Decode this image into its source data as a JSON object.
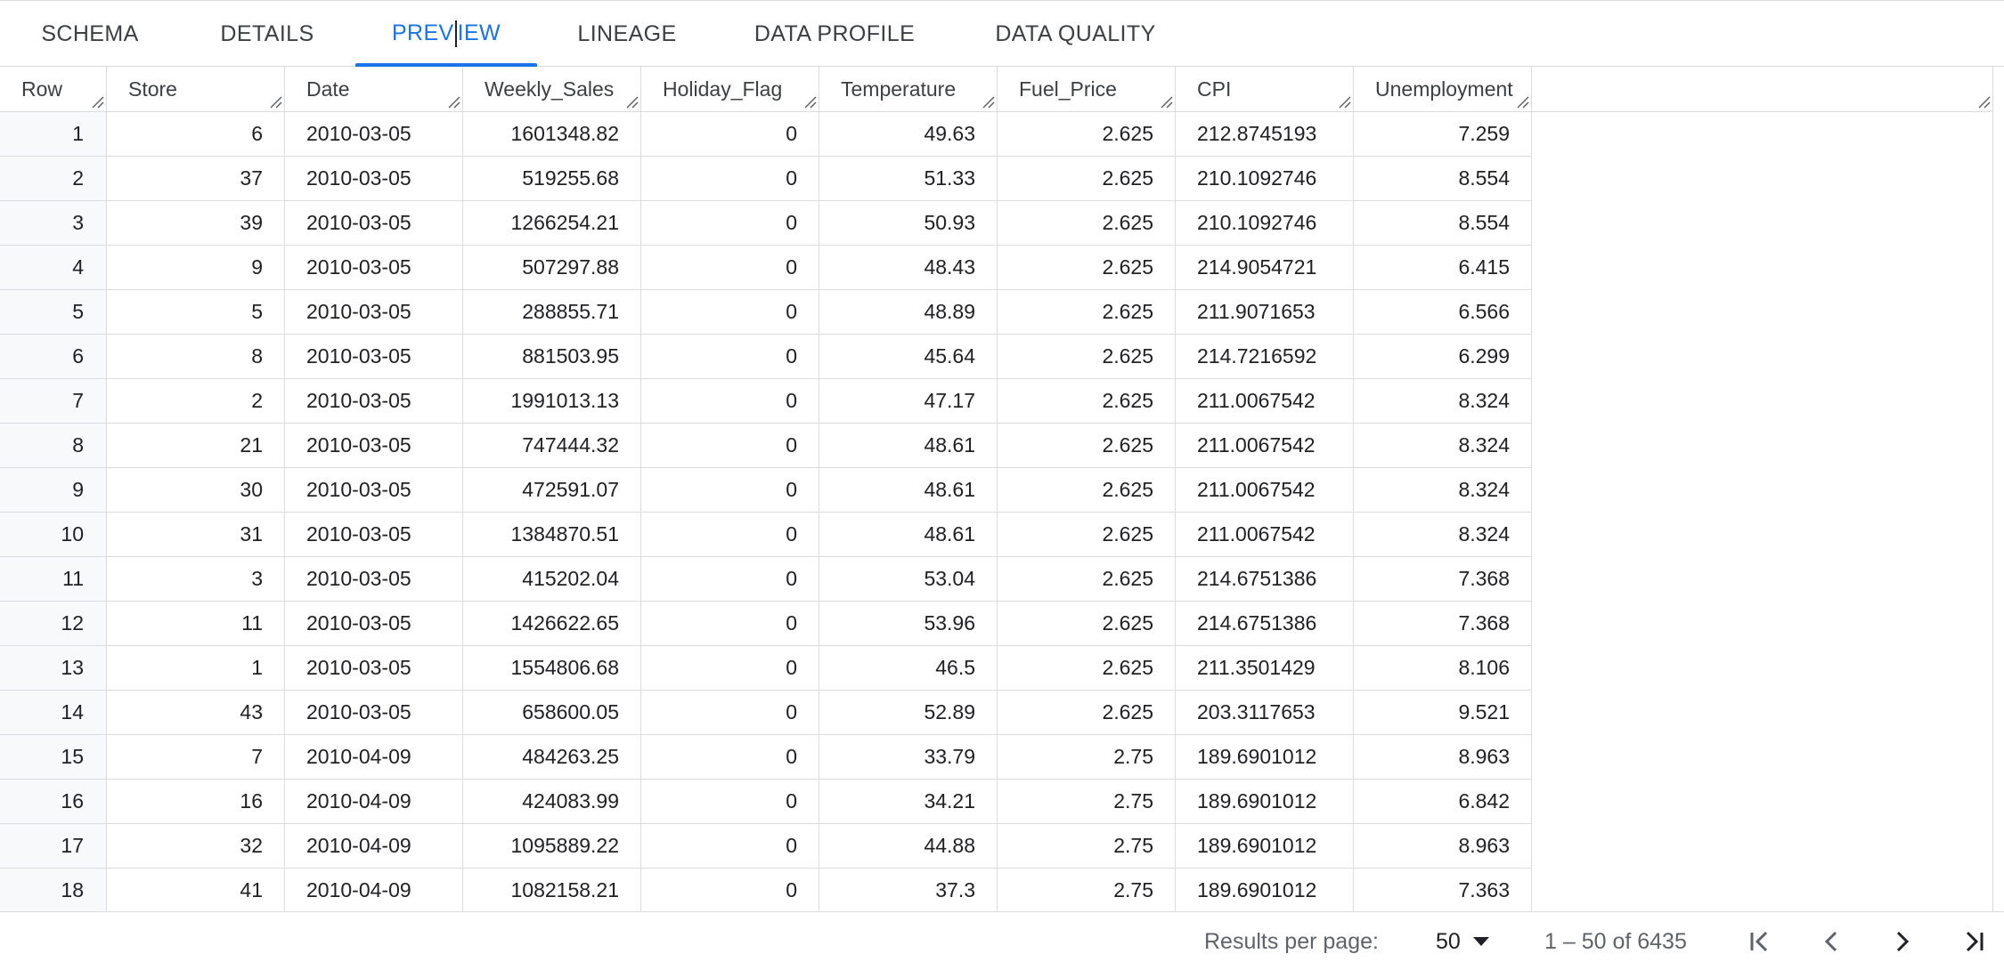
{
  "tabs": [
    {
      "label": "SCHEMA",
      "active": false
    },
    {
      "label": "DETAILS",
      "active": false
    },
    {
      "label_before_cursor": "PREV",
      "label_after_cursor": "IEW",
      "label": "PREVIEW",
      "active": true
    },
    {
      "label": "LINEAGE",
      "active": false
    },
    {
      "label": "DATA PROFILE",
      "active": false
    },
    {
      "label": "DATA QUALITY",
      "active": false
    }
  ],
  "table": {
    "columns": [
      "Row",
      "Store",
      "Date",
      "Weekly_Sales",
      "Holiday_Flag",
      "Temperature",
      "Fuel_Price",
      "CPI",
      "Unemployment"
    ],
    "rows": [
      [
        "1",
        "6",
        "2010-03-05",
        "1601348.82",
        "0",
        "49.63",
        "2.625",
        "212.8745193",
        "7.259"
      ],
      [
        "2",
        "37",
        "2010-03-05",
        "519255.68",
        "0",
        "51.33",
        "2.625",
        "210.1092746",
        "8.554"
      ],
      [
        "3",
        "39",
        "2010-03-05",
        "1266254.21",
        "0",
        "50.93",
        "2.625",
        "210.1092746",
        "8.554"
      ],
      [
        "4",
        "9",
        "2010-03-05",
        "507297.88",
        "0",
        "48.43",
        "2.625",
        "214.9054721",
        "6.415"
      ],
      [
        "5",
        "5",
        "2010-03-05",
        "288855.71",
        "0",
        "48.89",
        "2.625",
        "211.9071653",
        "6.566"
      ],
      [
        "6",
        "8",
        "2010-03-05",
        "881503.95",
        "0",
        "45.64",
        "2.625",
        "214.7216592",
        "6.299"
      ],
      [
        "7",
        "2",
        "2010-03-05",
        "1991013.13",
        "0",
        "47.17",
        "2.625",
        "211.0067542",
        "8.324"
      ],
      [
        "8",
        "21",
        "2010-03-05",
        "747444.32",
        "0",
        "48.61",
        "2.625",
        "211.0067542",
        "8.324"
      ],
      [
        "9",
        "30",
        "2010-03-05",
        "472591.07",
        "0",
        "48.61",
        "2.625",
        "211.0067542",
        "8.324"
      ],
      [
        "10",
        "31",
        "2010-03-05",
        "1384870.51",
        "0",
        "48.61",
        "2.625",
        "211.0067542",
        "8.324"
      ],
      [
        "11",
        "3",
        "2010-03-05",
        "415202.04",
        "0",
        "53.04",
        "2.625",
        "214.6751386",
        "7.368"
      ],
      [
        "12",
        "11",
        "2010-03-05",
        "1426622.65",
        "0",
        "53.96",
        "2.625",
        "214.6751386",
        "7.368"
      ],
      [
        "13",
        "1",
        "2010-03-05",
        "1554806.68",
        "0",
        "46.5",
        "2.625",
        "211.3501429",
        "8.106"
      ],
      [
        "14",
        "43",
        "2010-03-05",
        "658600.05",
        "0",
        "52.89",
        "2.625",
        "203.3117653",
        "9.521"
      ],
      [
        "15",
        "7",
        "2010-04-09",
        "484263.25",
        "0",
        "33.79",
        "2.75",
        "189.6901012",
        "8.963"
      ],
      [
        "16",
        "16",
        "2010-04-09",
        "424083.99",
        "0",
        "34.21",
        "2.75",
        "189.6901012",
        "6.842"
      ],
      [
        "17",
        "32",
        "2010-04-09",
        "1095889.22",
        "0",
        "44.88",
        "2.75",
        "189.6901012",
        "8.963"
      ],
      [
        "18",
        "41",
        "2010-04-09",
        "1082158.21",
        "0",
        "37.3",
        "2.75",
        "189.6901012",
        "7.363"
      ]
    ]
  },
  "pagination": {
    "results_per_page_label": "Results per page:",
    "results_per_page_value": "50",
    "range_text": "1 – 50 of 6435"
  },
  "icons": {
    "first_page": "first-page-icon",
    "prev_page": "chevron-left-icon",
    "next_page": "chevron-right-icon",
    "last_page": "last-page-icon",
    "dropdown": "dropdown-arrow-icon",
    "resize": "column-resize-handle-icon"
  },
  "colors": {
    "accent": "#1a73e8",
    "border": "#dadce0",
    "row_number_bg": "#f8f9fa",
    "text": "#202124",
    "muted_text": "#5f6368"
  }
}
